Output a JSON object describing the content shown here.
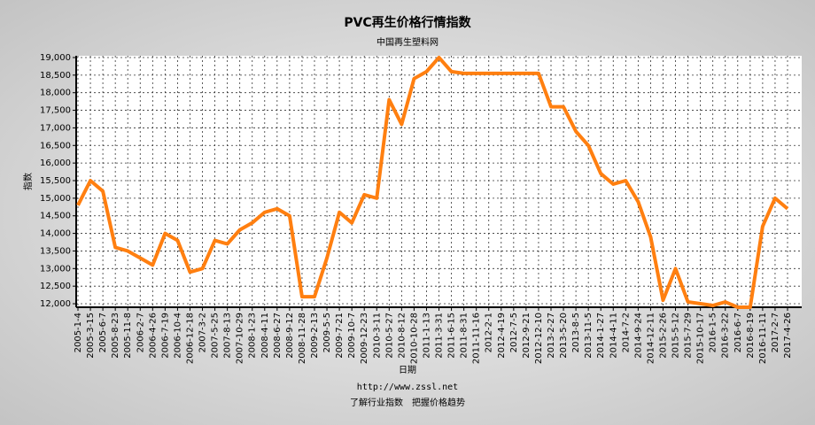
{
  "chart_data": {
    "type": "line",
    "title": "PVC再生价格行情指数",
    "subtitle": "中国再生塑料网",
    "x_label": "日期",
    "y_label": "指数",
    "footer": [
      "http://www.zssl.net",
      "了解行业指数　把握价格趋势"
    ],
    "categories": [
      "2005-1-4",
      "2005-3-15",
      "2005-6-7",
      "2005-8-23",
      "2005-11-8",
      "2006-2-7",
      "2006-4-26",
      "2006-7-19",
      "2006-10-4",
      "2006-12-18",
      "2007-3-2",
      "2007-5-25",
      "2007-8-13",
      "2007-10-29",
      "2008-1-23",
      "2008-4-11",
      "2008-6-27",
      "2008-9-12",
      "2008-11-28",
      "2009-2-13",
      "2009-5-5",
      "2009-7-21",
      "2009-10-7",
      "2009-12-23",
      "2010-3-11",
      "2010-5-27",
      "2010-8-12",
      "2010-10-28",
      "2011-1-13",
      "2011-3-31",
      "2011-6-15",
      "2011-8-31",
      "2011-11-16",
      "2012-2-1",
      "2012-4-19",
      "2012-7-5",
      "2012-9-21",
      "2012-12-10",
      "2013-2-27",
      "2013-5-20",
      "2013-8-5",
      "2013-11-5",
      "2014-1-27",
      "2014-4-11",
      "2014-7-2",
      "2014-9-24",
      "2014-12-11",
      "2015-2-26",
      "2015-5-12",
      "2015-7-29",
      "2015-10-17",
      "2016-1-5",
      "2016-3-22",
      "2016-6-7",
      "2016-8-19",
      "2016-11-11",
      "2017-2-7",
      "2017-4-26"
    ],
    "series": [
      {
        "color": "#ff7f10",
        "values": [
          14800,
          15500,
          15200,
          13600,
          13500,
          13300,
          13100,
          14000,
          13800,
          12900,
          13000,
          13800,
          13700,
          14100,
          14300,
          14600,
          14700,
          14500,
          12200,
          12200,
          13300,
          14600,
          14300,
          15100,
          15000,
          17800,
          17100,
          18400,
          18600,
          19000,
          18600,
          18550,
          18550,
          18550,
          18550,
          18550,
          18550,
          18550,
          17600,
          17600,
          16900,
          16500,
          15700,
          15400,
          15500,
          14900,
          13900,
          12100,
          13000,
          12050,
          12000,
          11950,
          12050,
          11900,
          11900,
          14200,
          15000,
          14700
        ]
      }
    ],
    "ylim": [
      11900,
      19050
    ],
    "yticks": [
      {
        "value": 12000,
        "label": "12,000"
      },
      {
        "value": 12500,
        "label": "12,500"
      },
      {
        "value": 13000,
        "label": "13,000"
      },
      {
        "value": 13500,
        "label": "13,500"
      },
      {
        "value": 14000,
        "label": "14,000"
      },
      {
        "value": 14500,
        "label": "14,500"
      },
      {
        "value": 15000,
        "label": "15,000"
      },
      {
        "value": 15500,
        "label": "15,500"
      },
      {
        "value": 16000,
        "label": "16,000"
      },
      {
        "value": 16500,
        "label": "16,500"
      },
      {
        "value": 17000,
        "label": "17,000"
      },
      {
        "value": 17500,
        "label": "17,500"
      },
      {
        "value": 18000,
        "label": "18,000"
      },
      {
        "value": 18500,
        "label": "18,500"
      },
      {
        "value": 19000,
        "label": "19,000"
      }
    ],
    "grid": true
  }
}
